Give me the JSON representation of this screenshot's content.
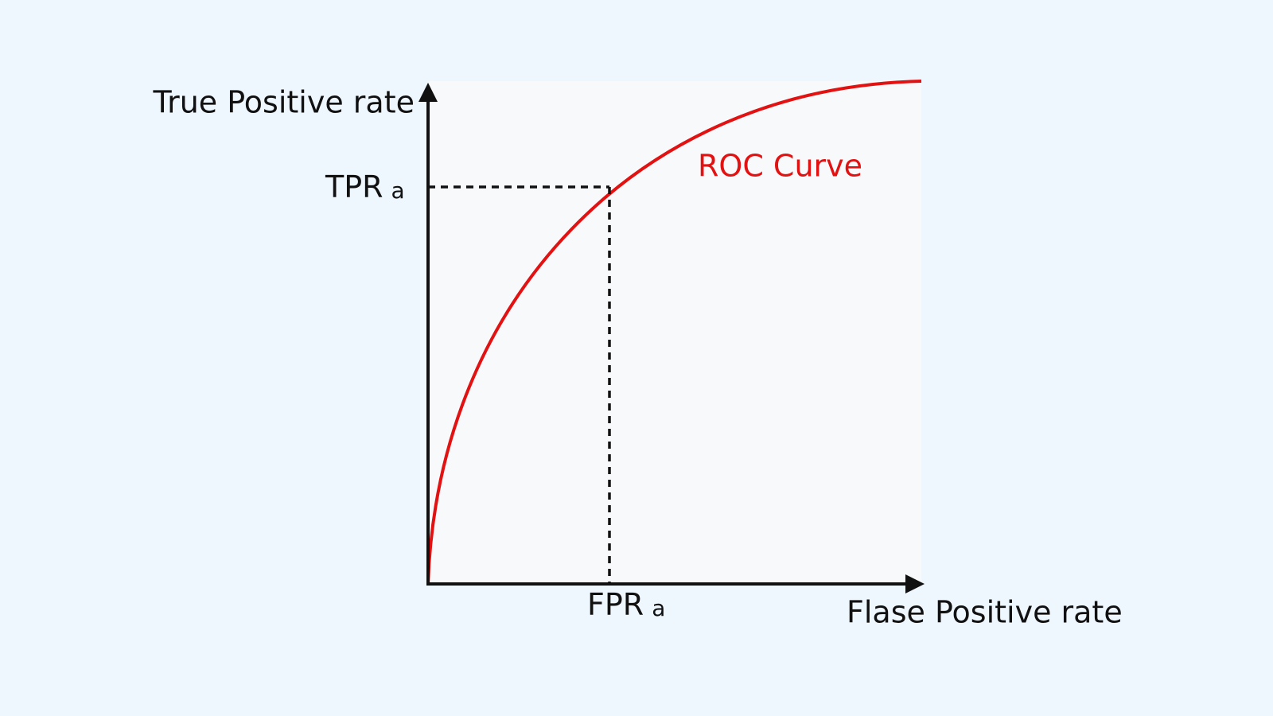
{
  "y_axis": {
    "label": "True Positive rate"
  },
  "x_axis": {
    "label": "Flase Positive rate"
  },
  "curve": {
    "label": "ROC Curve"
  },
  "point": {
    "tpr": {
      "text": "TPR",
      "subscript": "a"
    },
    "fpr": {
      "text": "FPR",
      "subscript": "a"
    }
  }
}
